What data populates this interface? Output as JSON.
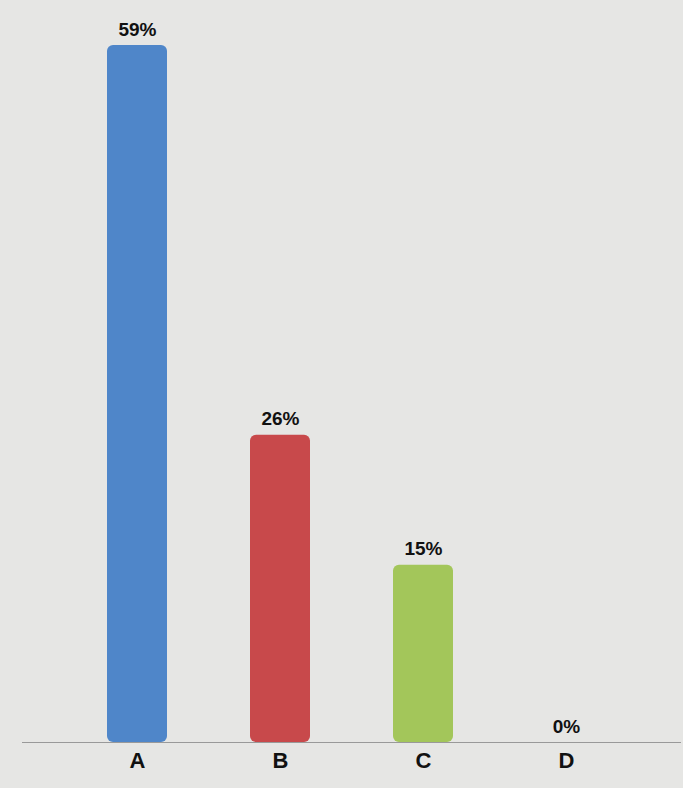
{
  "chart_data": {
    "type": "bar",
    "categories": [
      "A",
      "B",
      "C",
      "D"
    ],
    "values": [
      59,
      26,
      15,
      0
    ],
    "value_labels": [
      "59%",
      "26%",
      "15%",
      "0%"
    ],
    "colors": [
      "#4f86c9",
      "#c8494b",
      "#a3c65a",
      "#9b7fc8"
    ],
    "ylim": [
      0,
      59
    ],
    "data_labels": true,
    "tick_labels": "x"
  }
}
